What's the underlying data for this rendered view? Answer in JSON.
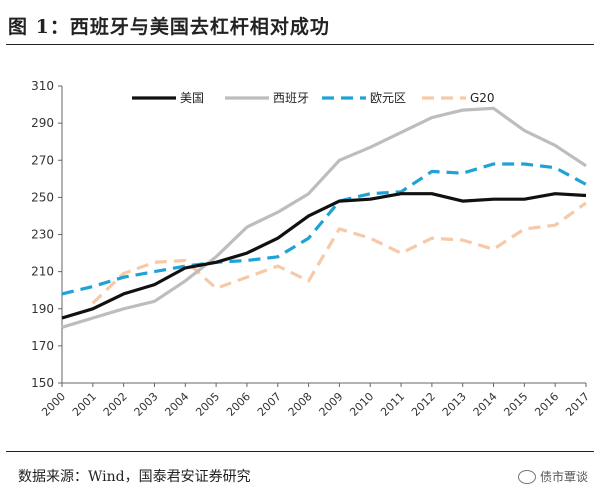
{
  "header": {
    "title": "图 1：西班牙与美国去杠杆相对成功"
  },
  "footer": {
    "source": "数据来源：Wind，国泰君安证券研究",
    "watermark": "债市覃谈"
  },
  "chart_data": {
    "type": "line",
    "categories": [
      "2000",
      "2001",
      "2002",
      "2003",
      "2004",
      "2005",
      "2006",
      "2007",
      "2008",
      "2009",
      "2010",
      "2011",
      "2012",
      "2013",
      "2014",
      "2015",
      "2016",
      "2017"
    ],
    "series": [
      {
        "name": "美国",
        "color": "#111111",
        "dash": "solid",
        "values": [
          185,
          190,
          198,
          203,
          212,
          215,
          220,
          228,
          240,
          248,
          249,
          252,
          252,
          248,
          249,
          249,
          252,
          251
        ]
      },
      {
        "name": "西班牙",
        "color": "#bdbdbd",
        "dash": "solid",
        "values": [
          180,
          185,
          190,
          194,
          205,
          218,
          234,
          242,
          252,
          270,
          277,
          285,
          293,
          297,
          298,
          286,
          278,
          267
        ]
      },
      {
        "name": "欧元区",
        "color": "#1fa3d6",
        "dash": "dashed",
        "values": [
          198,
          202,
          207,
          210,
          213,
          215,
          216,
          218,
          228,
          248,
          252,
          253,
          264,
          263,
          268,
          268,
          266,
          257
        ]
      },
      {
        "name": "G20",
        "color": "#f6c9a8",
        "dash": "dashed",
        "values": [
          null,
          193,
          209,
          215,
          216,
          201,
          207,
          213,
          205,
          233,
          228,
          220,
          228,
          227,
          222,
          233,
          235,
          247
        ]
      }
    ],
    "ylim": [
      150,
      310
    ],
    "yticks": [
      150,
      170,
      190,
      210,
      230,
      250,
      270,
      290,
      310
    ],
    "legend": "top",
    "grid": false
  }
}
